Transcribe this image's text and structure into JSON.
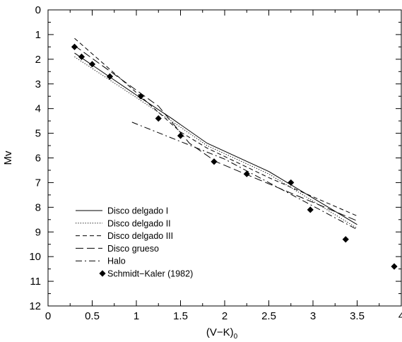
{
  "chart_data": {
    "type": "line",
    "title": "",
    "xlabel": "(V−K)",
    "xlabel_subscript": "0",
    "ylabel": "Mv",
    "xlim": [
      0,
      4
    ],
    "ylim": [
      12,
      0
    ],
    "y_inverted": true,
    "x_ticks": [
      {
        "value": 0,
        "label": "0"
      },
      {
        "value": 0.5,
        "label": "0.5"
      },
      {
        "value": 1,
        "label": "1"
      },
      {
        "value": 1.5,
        "label": "1.5"
      },
      {
        "value": 2,
        "label": "2"
      },
      {
        "value": 2.5,
        "label": "2.5"
      },
      {
        "value": 3,
        "label": "3"
      },
      {
        "value": 3.5,
        "label": "3.5"
      },
      {
        "value": 4,
        "label": "4"
      }
    ],
    "y_ticks": [
      {
        "value": 0,
        "label": "0"
      },
      {
        "value": 1,
        "label": "1"
      },
      {
        "value": 2,
        "label": "2"
      },
      {
        "value": 3,
        "label": "3"
      },
      {
        "value": 4,
        "label": "4"
      },
      {
        "value": 5,
        "label": "5"
      },
      {
        "value": 6,
        "label": "6"
      },
      {
        "value": 7,
        "label": "7"
      },
      {
        "value": 8,
        "label": "8"
      },
      {
        "value": 9,
        "label": "9"
      },
      {
        "value": 10,
        "label": "10"
      },
      {
        "value": 11,
        "label": "11"
      },
      {
        "value": 12,
        "label": "12"
      }
    ],
    "grid": false,
    "legend_position": "bottom-left",
    "series": [
      {
        "name": "Disco delgado I",
        "style": "solid",
        "points": [
          [
            0.3,
            1.75
          ],
          [
            1.0,
            3.45
          ],
          [
            1.4,
            4.4
          ],
          [
            1.8,
            5.4
          ],
          [
            2.5,
            6.55
          ],
          [
            3.5,
            8.7
          ]
        ]
      },
      {
        "name": "Disco delgado II",
        "style": "dotted",
        "points": [
          [
            0.3,
            1.9
          ],
          [
            1.0,
            3.55
          ],
          [
            1.5,
            4.75
          ],
          [
            1.8,
            5.5
          ],
          [
            2.5,
            6.65
          ],
          [
            3.5,
            8.85
          ]
        ]
      },
      {
        "name": "Disco delgado III",
        "style": "dashed",
        "points": [
          [
            0.3,
            1.15
          ],
          [
            1.0,
            3.35
          ],
          [
            1.5,
            4.95
          ],
          [
            1.8,
            5.6
          ],
          [
            2.5,
            6.8
          ],
          [
            3.5,
            8.35
          ]
        ]
      },
      {
        "name": "Disco grueso",
        "style": "longdash",
        "points": [
          [
            0.3,
            1.45
          ],
          [
            1.25,
            3.9
          ],
          [
            1.6,
            5.4
          ],
          [
            1.9,
            6.15
          ],
          [
            2.3,
            6.75
          ],
          [
            3.5,
            8.55
          ]
        ]
      },
      {
        "name": "Halo",
        "style": "dashdot",
        "points": [
          [
            0.95,
            4.55
          ],
          [
            2.0,
            6.05
          ],
          [
            3.5,
            8.9
          ]
        ]
      },
      {
        "name": "Schmidt−Kaler (1982)",
        "style": "marker",
        "points": [
          [
            0.3,
            1.5
          ],
          [
            0.38,
            1.9
          ],
          [
            0.5,
            2.2
          ],
          [
            0.7,
            2.7
          ],
          [
            1.05,
            3.5
          ],
          [
            1.25,
            4.4
          ],
          [
            1.5,
            5.1
          ],
          [
            1.88,
            6.15
          ],
          [
            2.25,
            6.65
          ],
          [
            2.75,
            7.0
          ],
          [
            2.97,
            8.1
          ],
          [
            3.37,
            9.3
          ],
          [
            3.92,
            10.4
          ]
        ]
      }
    ]
  }
}
